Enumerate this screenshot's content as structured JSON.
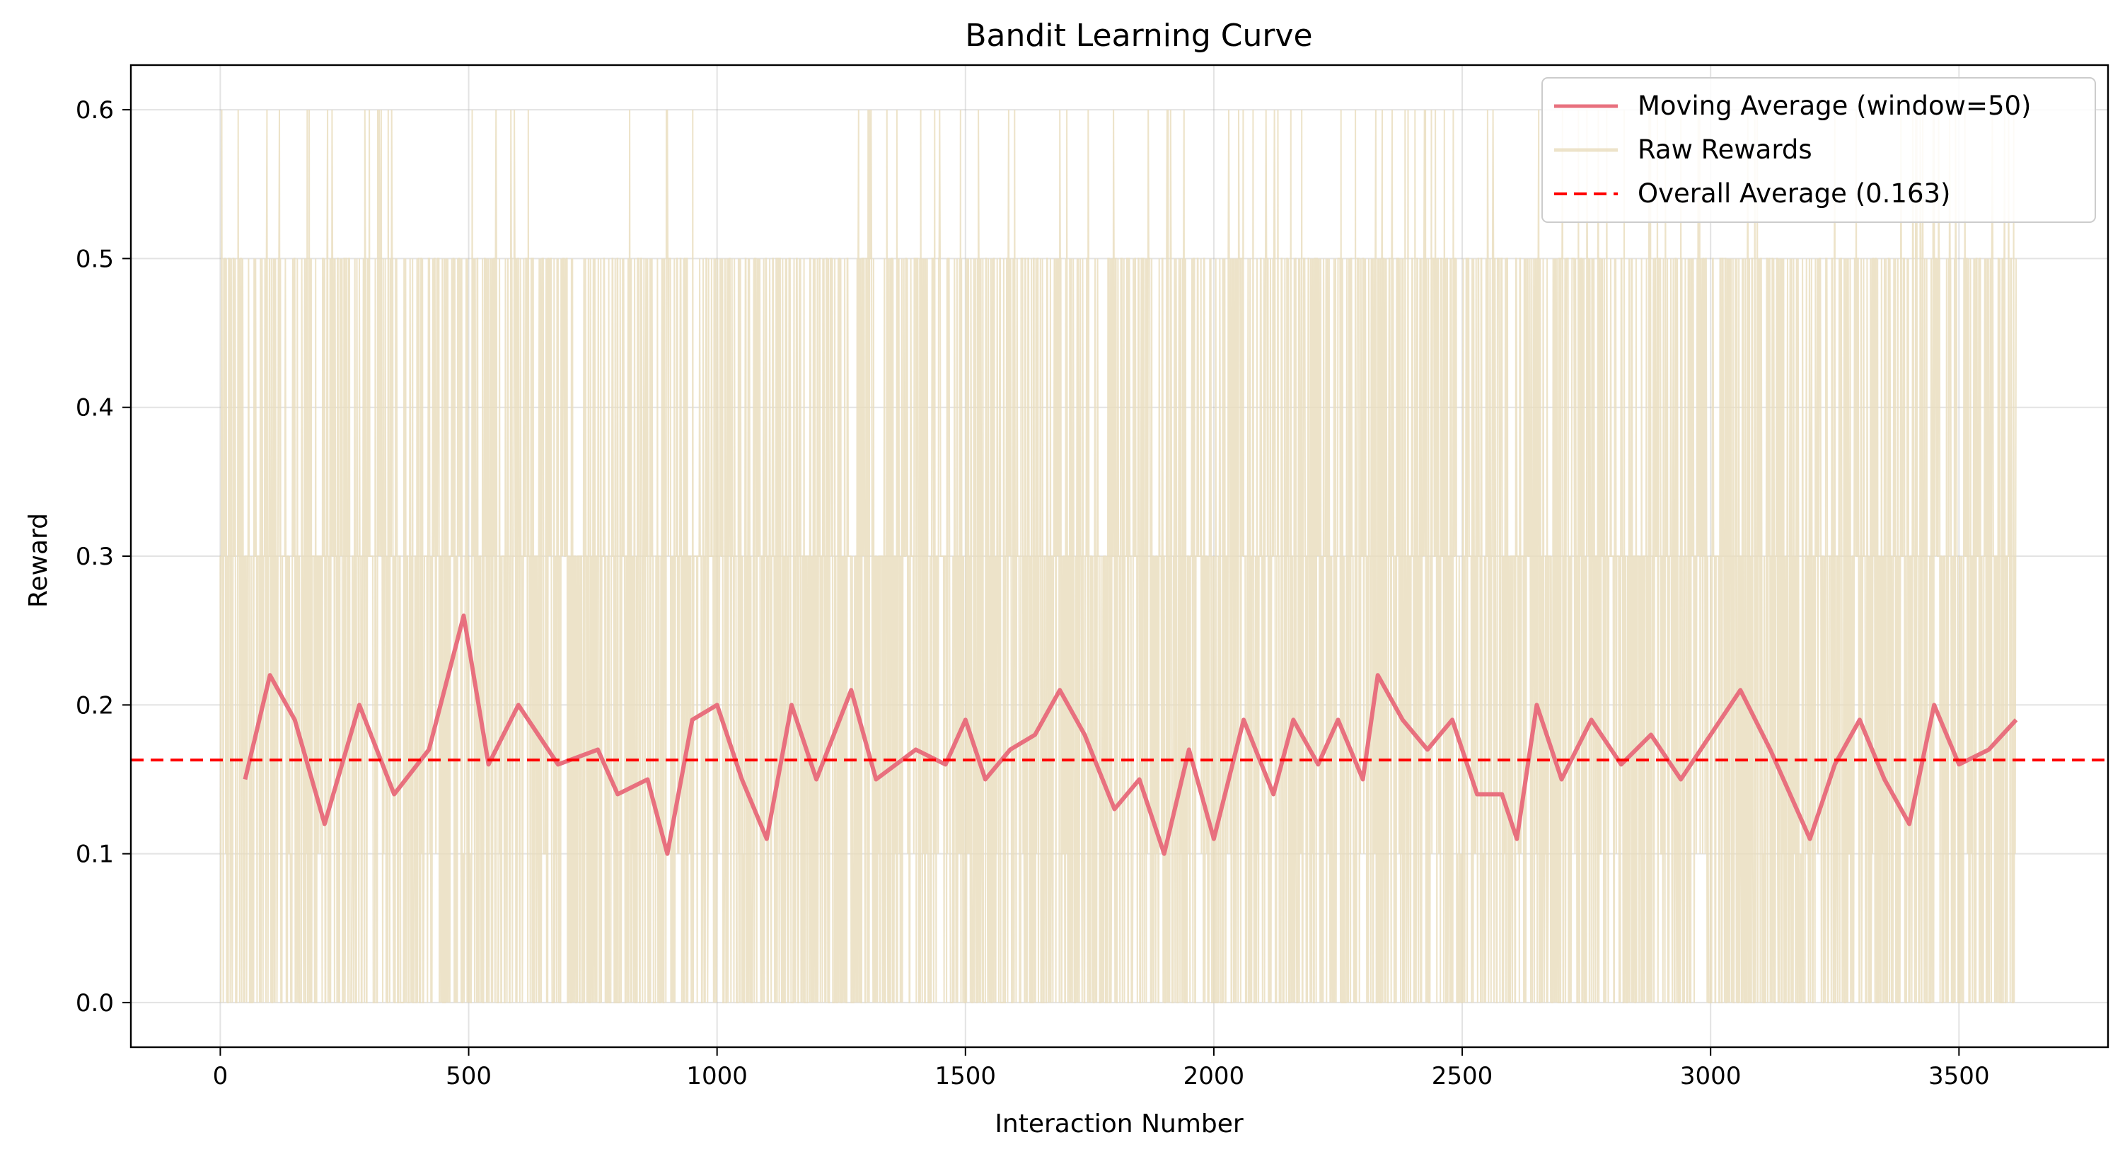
{
  "chart_data": {
    "type": "line",
    "title": "Bandit Learning Curve",
    "xlabel": "Interaction Number",
    "ylabel": "Reward",
    "xlim": [
      -180,
      3800
    ],
    "ylim": [
      -0.03,
      0.63
    ],
    "x_ticks": [
      0,
      500,
      1000,
      1500,
      2000,
      2500,
      3000,
      3500
    ],
    "x_tick_labels": [
      "0",
      "500",
      "1000",
      "1500",
      "2000",
      "2500",
      "3000",
      "3500"
    ],
    "y_ticks": [
      0.0,
      0.1,
      0.2,
      0.3,
      0.4,
      0.5,
      0.6
    ],
    "y_tick_labels": [
      "0.0",
      "0.1",
      "0.2",
      "0.3",
      "0.4",
      "0.5",
      "0.6"
    ],
    "grid": true,
    "legend_position": "top-right",
    "n_interactions": 3615,
    "series": [
      {
        "name": "Moving Average (window=50)",
        "style": "solid",
        "color": "#e8707e",
        "x": [
          50,
          100,
          150,
          210,
          280,
          350,
          420,
          490,
          540,
          600,
          680,
          760,
          800,
          860,
          900,
          950,
          1000,
          1050,
          1100,
          1150,
          1200,
          1270,
          1320,
          1400,
          1460,
          1500,
          1540,
          1590,
          1640,
          1690,
          1740,
          1800,
          1850,
          1900,
          1950,
          2000,
          2060,
          2120,
          2160,
          2210,
          2250,
          2300,
          2330,
          2380,
          2430,
          2480,
          2530,
          2580,
          2610,
          2650,
          2700,
          2760,
          2820,
          2880,
          2940,
          3000,
          3060,
          3120,
          3200,
          3250,
          3300,
          3350,
          3400,
          3450,
          3500,
          3560,
          3615
        ],
        "y": [
          0.15,
          0.22,
          0.19,
          0.12,
          0.2,
          0.14,
          0.17,
          0.26,
          0.16,
          0.2,
          0.16,
          0.17,
          0.14,
          0.15,
          0.1,
          0.19,
          0.2,
          0.15,
          0.11,
          0.2,
          0.15,
          0.21,
          0.15,
          0.17,
          0.16,
          0.19,
          0.15,
          0.17,
          0.18,
          0.21,
          0.18,
          0.13,
          0.15,
          0.1,
          0.17,
          0.11,
          0.19,
          0.14,
          0.19,
          0.16,
          0.19,
          0.15,
          0.22,
          0.19,
          0.17,
          0.19,
          0.14,
          0.14,
          0.11,
          0.2,
          0.15,
          0.19,
          0.16,
          0.18,
          0.15,
          0.18,
          0.21,
          0.17,
          0.11,
          0.16,
          0.19,
          0.15,
          0.12,
          0.2,
          0.16,
          0.17,
          0.19
        ]
      },
      {
        "name": "Raw Rewards",
        "style": "solid",
        "color": "#e8dcbc",
        "levels": [
          0.0,
          0.1,
          0.3,
          0.5,
          0.6
        ]
      },
      {
        "name": "Overall Average (0.163)",
        "style": "dashed",
        "color": "#ff0000",
        "y": 0.163
      }
    ]
  }
}
